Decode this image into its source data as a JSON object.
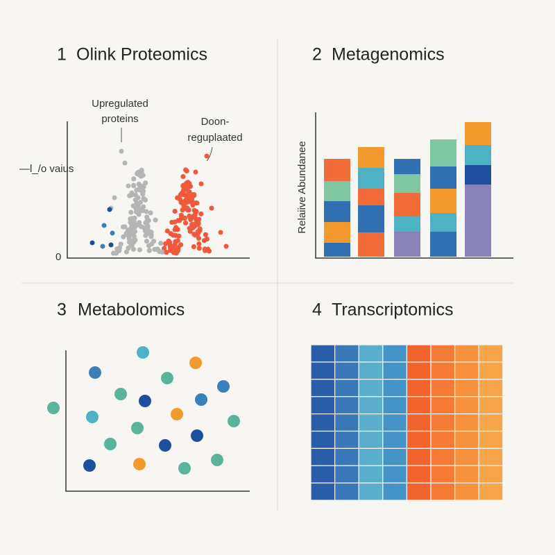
{
  "panels": [
    {
      "number": "1",
      "title": "Olink Proteomics",
      "labels": [
        "Upregulated",
        "proteins",
        "Doon-",
        "reguplaated"
      ],
      "y_label": "—l_/o vaius",
      "zero": "0"
    },
    {
      "number": "2",
      "title": "Metagenomics",
      "y_label": "Relaiive Abundanee"
    },
    {
      "number": "3",
      "title": "Metabolomics"
    },
    {
      "number": "4",
      "title": "Transcriptomics"
    }
  ]
}
